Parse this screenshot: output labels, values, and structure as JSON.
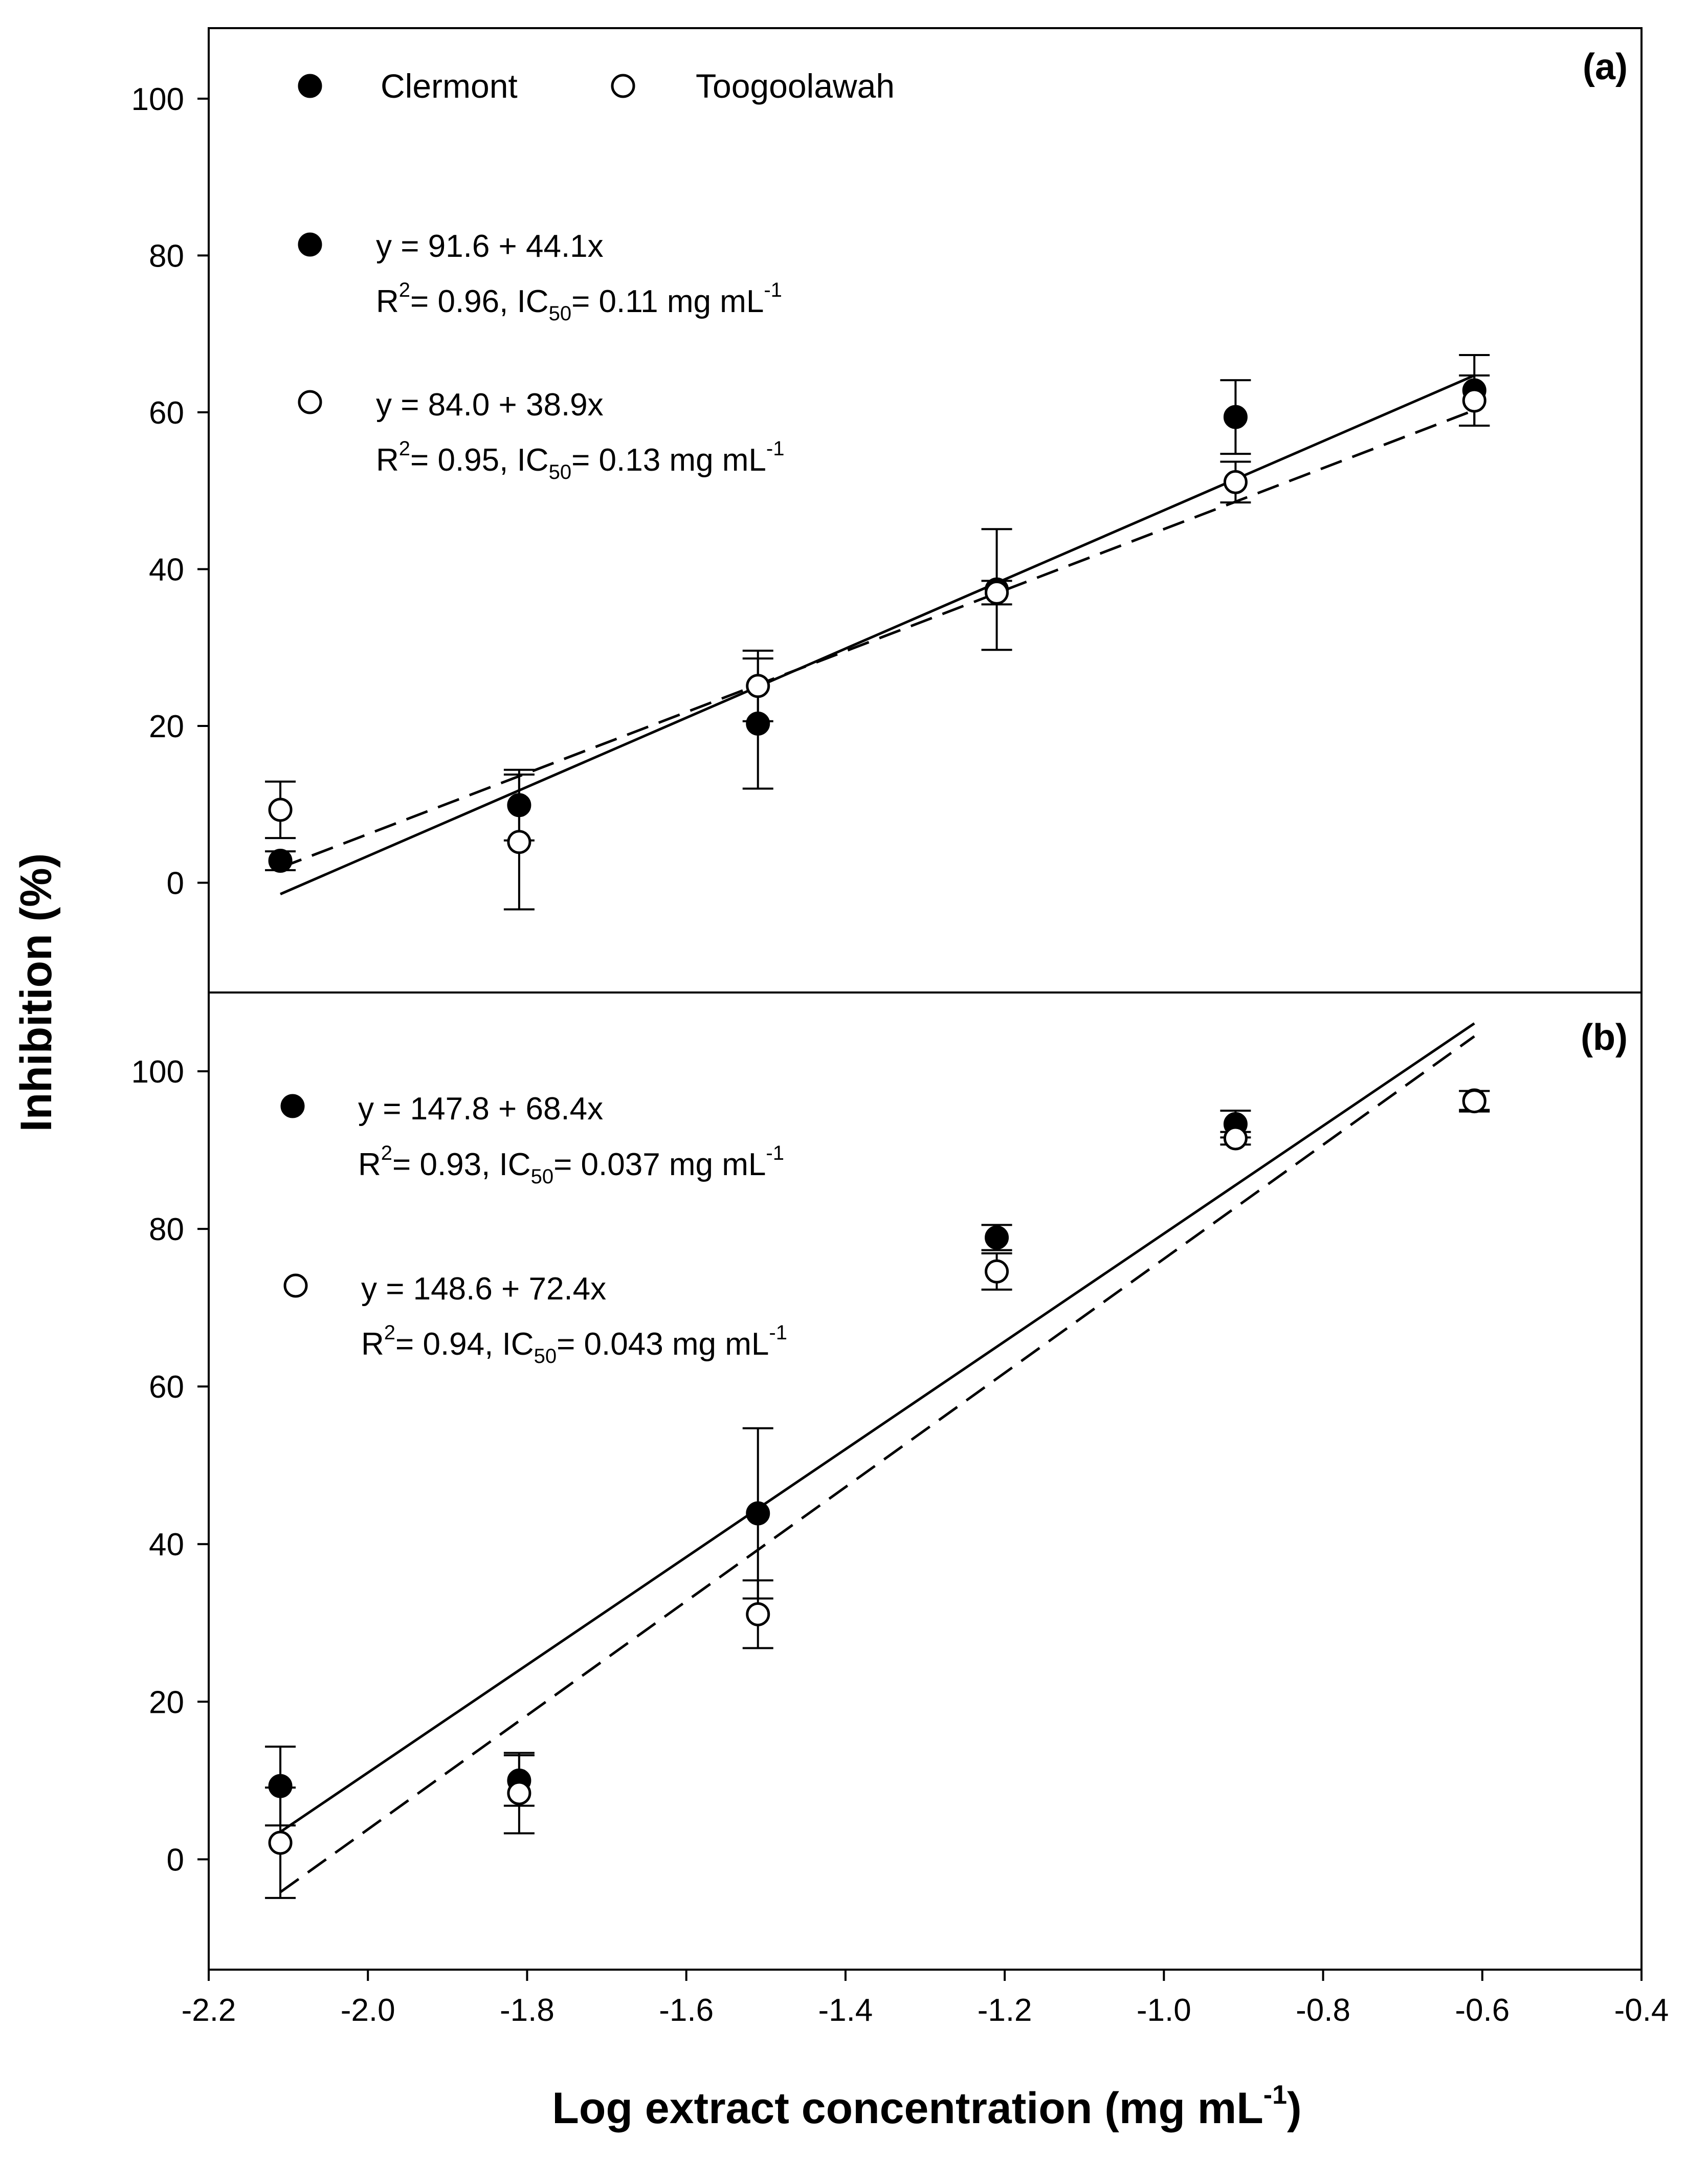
{
  "chart_data": [
    {
      "panel": "(a)",
      "type": "scatter",
      "xlim": [
        -2.2,
        -0.4
      ],
      "ylim": [
        -14,
        109
      ],
      "yticks": [
        0,
        20,
        40,
        60,
        80,
        100
      ],
      "legend": {
        "clermont": "Clermont",
        "toogoolawah": "Toogoolawah"
      },
      "series": [
        {
          "name": "Clermont",
          "marker": "filled-circle",
          "x": [
            -2.11,
            -1.81,
            -1.51,
            -1.21,
            -0.91,
            -0.61
          ],
          "y": [
            2.8,
            9.9,
            20.3,
            37.4,
            59.4,
            62.8
          ],
          "err": [
            1.2,
            4.5,
            8.3,
            7.7,
            4.7,
            4.5
          ],
          "fit": {
            "intercept": 91.6,
            "slope": 44.1,
            "style": "solid"
          },
          "eq_line1": "y = 91.6 + 44.1x",
          "eq_r2_prefix": "R",
          "eq_r2_value": "= 0.96, IC",
          "eq_ic_value": "= 0.11 mg mL",
          "sup2": "2",
          "sub50": "50",
          "supm1": "-1"
        },
        {
          "name": "Toogoolawah",
          "marker": "open-circle",
          "x": [
            -2.11,
            -1.81,
            -1.51,
            -1.21,
            -0.91,
            -0.61
          ],
          "y": [
            9.3,
            5.2,
            25.1,
            37.0,
            51.1,
            61.5
          ],
          "err": [
            3.6,
            8.6,
            4.5,
            1.5,
            2.6,
            3.2
          ],
          "fit": {
            "intercept": 84.0,
            "slope": 38.9,
            "style": "dashed"
          },
          "eq_line1": "y = 84.0 + 38.9x",
          "eq_r2_prefix": "R",
          "eq_r2_value": "= 0.95, IC",
          "eq_ic_value": "= 0.13 mg mL",
          "sup2": "2",
          "sub50": "50",
          "supm1": "-1"
        }
      ]
    },
    {
      "panel": "(b)",
      "type": "scatter",
      "xlim": [
        -2.2,
        -0.4
      ],
      "ylim": [
        -14,
        110
      ],
      "yticks": [
        0,
        20,
        40,
        60,
        80,
        100
      ],
      "series": [
        {
          "name": "Clermont",
          "marker": "filled-circle",
          "x": [
            -2.11,
            -1.81,
            -1.51,
            -1.21,
            -0.91,
            -0.61
          ],
          "y": [
            9.3,
            10.0,
            43.9,
            78.9,
            93.3,
            96.3
          ],
          "err": [
            5.0,
            3.2,
            10.8,
            1.6,
            1.7,
            1.2
          ],
          "fit": {
            "intercept": 147.8,
            "slope": 68.4,
            "style": "solid"
          },
          "eq_line1": "y = 147.8 + 68.4x",
          "eq_r2_prefix": "R",
          "eq_r2_value": "= 0.93, IC",
          "eq_ic_value": "= 0.037 mg mL",
          "sup2": "2",
          "sub50": "50",
          "supm1": "-1"
        },
        {
          "name": "Toogoolawah",
          "marker": "open-circle",
          "x": [
            -2.11,
            -1.81,
            -1.51,
            -1.21,
            -0.91,
            -0.61
          ],
          "y": [
            2.1,
            8.4,
            31.1,
            74.6,
            91.5,
            96.2
          ],
          "err": [
            7.0,
            5.1,
            4.3,
            2.3,
            0.8,
            1.3
          ],
          "fit": {
            "intercept": 148.6,
            "slope": 72.4,
            "style": "dashed"
          },
          "eq_line1": "y = 148.6 + 72.4x",
          "eq_r2_prefix": "R",
          "eq_r2_value": "= 0.94, IC",
          "eq_ic_value": "= 0.043 mg mL",
          "sup2": "2",
          "sub50": "50",
          "supm1": "-1"
        }
      ]
    }
  ],
  "axes": {
    "xticks": [
      "-2.2",
      "-2.0",
      "-1.8",
      "-1.6",
      "-1.4",
      "-1.2",
      "-1.0",
      "-0.8",
      "-0.6",
      "-0.4"
    ],
    "yticks": [
      "0",
      "20",
      "40",
      "60",
      "80",
      "100"
    ],
    "ylabel": "Inhibition (%)",
    "xlabel_main": "Log extract concentration (mg mL",
    "xlabel_sup": "-1",
    "xlabel_close": ")"
  }
}
